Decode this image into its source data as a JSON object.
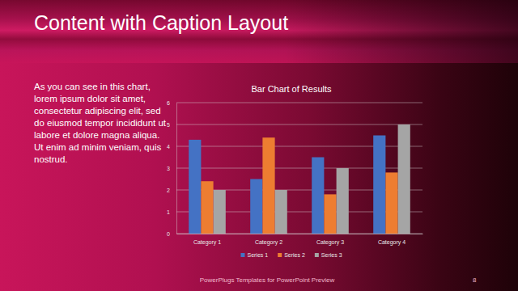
{
  "slide": {
    "title": "Content with Caption Layout",
    "caption": "As you can see in this chart, lorem ipsum dolor sit amet, consectetur adipiscing elit, sed do eiusmod tempor incididunt ut labore et dolore magna aliqua. Ut enim ad minim veniam, quis nostrud.",
    "footer": "PowerPlugs Templates for PowerPoint Preview",
    "page": "8"
  },
  "chart_data": {
    "type": "bar",
    "title": "Bar Chart of Results",
    "categories": [
      "Category 1",
      "Category 2",
      "Category 3",
      "Category 4"
    ],
    "series": [
      {
        "name": "Series 1",
        "color": "#4472c4",
        "values": [
          4.3,
          2.5,
          3.5,
          4.5
        ]
      },
      {
        "name": "Series 2",
        "color": "#ed7d31",
        "values": [
          2.4,
          4.4,
          1.8,
          2.8
        ]
      },
      {
        "name": "Series 3",
        "color": "#a5a5a5",
        "values": [
          2.0,
          2.0,
          3.0,
          5.0
        ]
      }
    ],
    "ylim": [
      0,
      6
    ],
    "yticks": [
      0,
      1,
      2,
      3,
      4,
      5,
      6
    ],
    "grid": true,
    "legend": "bottom"
  }
}
